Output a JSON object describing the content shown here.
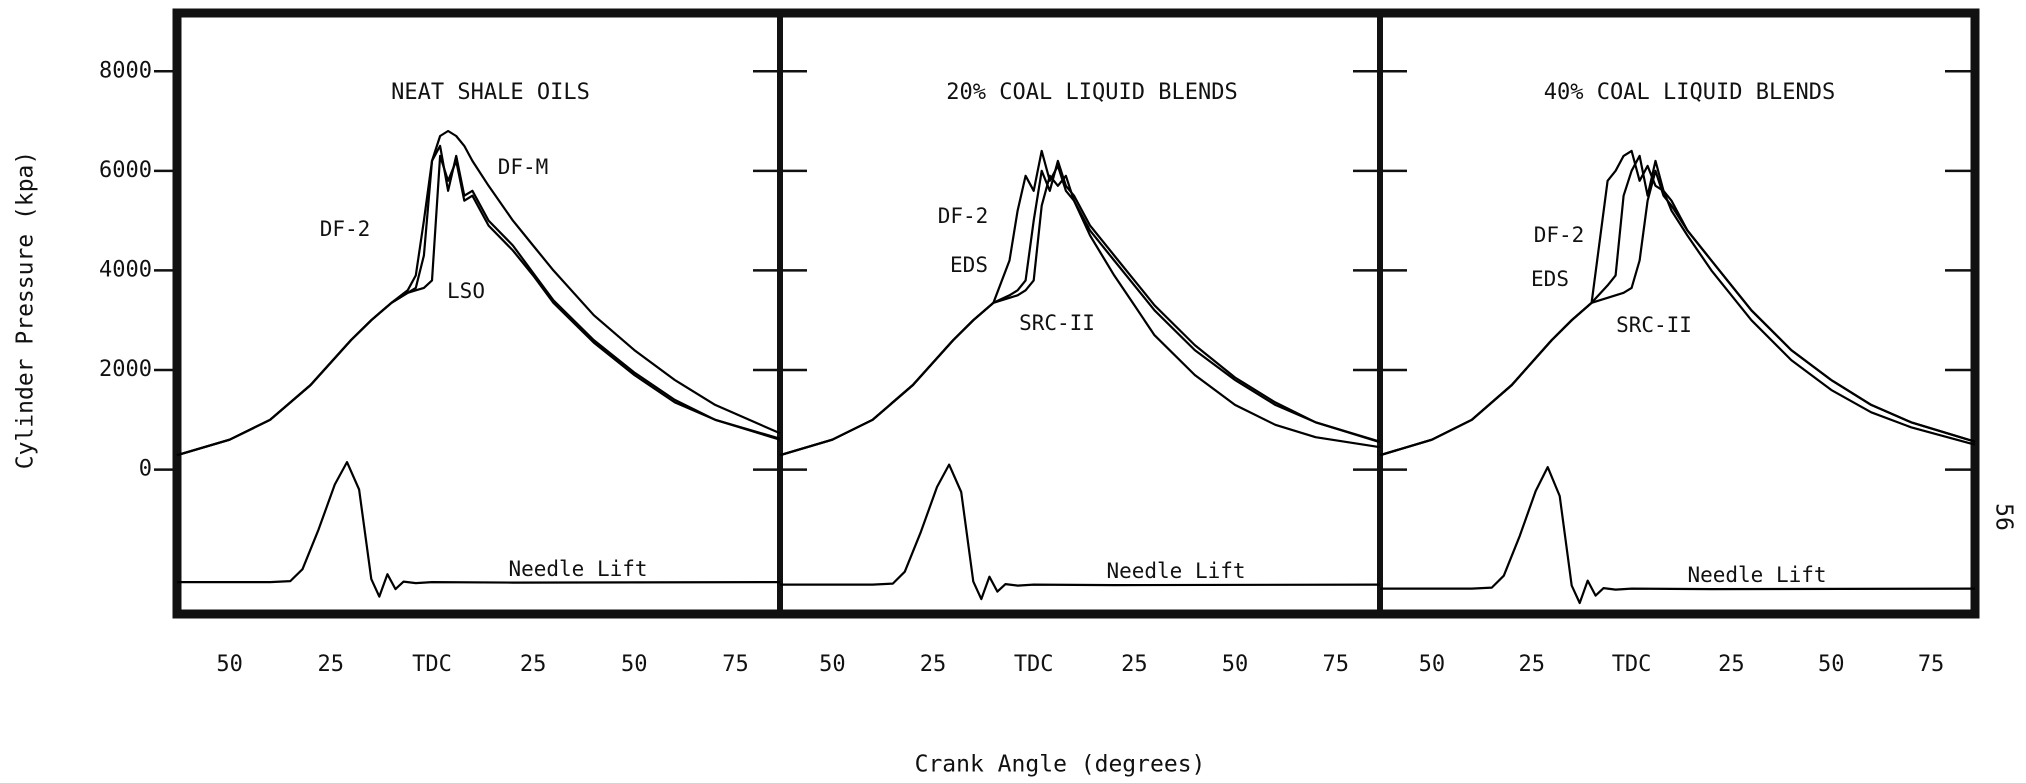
{
  "chart_data": [
    {
      "type": "line",
      "title": "NEAT SHALE OILS",
      "x": [
        -63,
        -50,
        -40,
        -30,
        -20,
        -15,
        -10,
        -6,
        -4,
        -2,
        0,
        2,
        4,
        6,
        8,
        10,
        14,
        20,
        25,
        30,
        40,
        50,
        60,
        70,
        86
      ],
      "xlim": [
        -63,
        86
      ],
      "xticks": [
        {
          "value": -50,
          "label": "50"
        },
        {
          "value": -25,
          "label": "25"
        },
        {
          "value": 0,
          "label": "TDC"
        },
        25,
        50,
        75
      ],
      "ylim": [
        -2900,
        9170
      ],
      "yticks": [
        0,
        2000,
        4000,
        6000,
        8000
      ],
      "series": [
        {
          "name": "DF-2",
          "color": "#000000",
          "values": [
            290,
            600,
            1000,
            1700,
            2600,
            3000,
            3350,
            3550,
            3650,
            4300,
            6200,
            6500,
            5600,
            6300,
            5500,
            5600,
            5000,
            4500,
            3950,
            3400,
            2600,
            1950,
            1400,
            1000,
            600
          ]
        },
        {
          "name": "LSO",
          "color": "#000000",
          "values": [
            290,
            600,
            1000,
            1700,
            2600,
            3000,
            3350,
            3550,
            3600,
            3650,
            3800,
            6300,
            5800,
            6200,
            5400,
            5500,
            4900,
            4400,
            3900,
            3350,
            2550,
            1900,
            1350,
            1000,
            620
          ]
        },
        {
          "name": "DF-M",
          "color": "#000000",
          "values": [
            290,
            600,
            1000,
            1700,
            2600,
            3000,
            3350,
            3600,
            3900,
            5000,
            6200,
            6700,
            6800,
            6700,
            6500,
            6200,
            5700,
            5000,
            4500,
            4000,
            3100,
            2400,
            1800,
            1300,
            730
          ]
        },
        {
          "name": "Needle Lift",
          "color": "#000000",
          "x": [
            -63,
            -40,
            -35,
            -32,
            -28,
            -24,
            -21,
            -18,
            -15,
            -13,
            -11,
            -9,
            -7,
            -4,
            0,
            20,
            86
          ],
          "values": [
            -2260,
            -2260,
            -2240,
            -2000,
            -1200,
            -300,
            150,
            -400,
            -2200,
            -2550,
            -2100,
            -2400,
            -2250,
            -2280,
            -2260,
            -2270,
            -2260
          ]
        }
      ]
    },
    {
      "type": "line",
      "title": "20% COAL LIQUID BLENDS",
      "x": [
        -63,
        -50,
        -40,
        -30,
        -20,
        -15,
        -10,
        -6,
        -4,
        -2,
        0,
        2,
        4,
        6,
        8,
        10,
        14,
        20,
        25,
        30,
        40,
        50,
        60,
        70,
        86
      ],
      "xlim": [
        -63,
        86
      ],
      "xticks": [
        {
          "value": -50,
          "label": "50"
        },
        {
          "value": -25,
          "label": "25"
        },
        {
          "value": 0,
          "label": "TDC"
        },
        25,
        50,
        75
      ],
      "series": [
        {
          "name": "DF-2",
          "color": "#000000",
          "values": [
            290,
            600,
            1000,
            1700,
            2600,
            3000,
            3350,
            4200,
            5200,
            5900,
            5600,
            6400,
            5800,
            6100,
            5600,
            5400,
            4800,
            4200,
            3700,
            3200,
            2400,
            1800,
            1300,
            950,
            550
          ]
        },
        {
          "name": "EDS",
          "color": "#000000",
          "values": [
            290,
            600,
            1000,
            1700,
            2600,
            3000,
            3350,
            3500,
            3600,
            3800,
            5000,
            6000,
            5600,
            6200,
            5700,
            5500,
            4900,
            4300,
            3800,
            3300,
            2500,
            1850,
            1350,
            950,
            560
          ]
        },
        {
          "name": "SRC-II",
          "color": "#000000",
          "values": [
            290,
            600,
            1000,
            1700,
            2600,
            3000,
            3350,
            3450,
            3500,
            3600,
            3800,
            5300,
            5900,
            5700,
            5900,
            5400,
            4700,
            3900,
            3300,
            2700,
            1900,
            1300,
            900,
            650,
            450
          ]
        },
        {
          "name": "Needle Lift",
          "color": "#000000",
          "x": [
            -63,
            -40,
            -35,
            -32,
            -28,
            -24,
            -21,
            -18,
            -15,
            -13,
            -11,
            -9,
            -7,
            -4,
            0,
            20,
            86
          ],
          "values": [
            -2310,
            -2310,
            -2290,
            -2050,
            -1250,
            -350,
            100,
            -450,
            -2250,
            -2600,
            -2150,
            -2450,
            -2300,
            -2330,
            -2310,
            -2320,
            -2310
          ]
        }
      ]
    },
    {
      "type": "line",
      "title": "40% COAL LIQUID BLENDS",
      "x": [
        -63,
        -50,
        -40,
        -30,
        -20,
        -15,
        -10,
        -6,
        -4,
        -2,
        0,
        2,
        4,
        6,
        8,
        10,
        14,
        20,
        25,
        30,
        40,
        50,
        60,
        70,
        86
      ],
      "xlim": [
        -63,
        86
      ],
      "xticks": [
        {
          "value": -50,
          "label": "50"
        },
        {
          "value": -25,
          "label": "25"
        },
        {
          "value": 0,
          "label": "TDC"
        },
        25,
        50,
        75
      ],
      "series": [
        {
          "name": "DF-2",
          "color": "#000000",
          "values": [
            290,
            600,
            1000,
            1700,
            2600,
            3000,
            3350,
            5800,
            6000,
            6300,
            6400,
            5800,
            6100,
            5700,
            5600,
            5200,
            4700,
            4000,
            3500,
            3000,
            2200,
            1600,
            1150,
            850,
            500
          ]
        },
        {
          "name": "EDS",
          "color": "#000000",
          "values": [
            290,
            600,
            1000,
            1700,
            2600,
            3000,
            3350,
            3700,
            3900,
            5500,
            6000,
            6300,
            5500,
            6200,
            5600,
            5400,
            4800,
            4200,
            3700,
            3200,
            2400,
            1800,
            1300,
            950,
            560
          ]
        },
        {
          "name": "SRC-II",
          "color": "#000000",
          "values": [
            290,
            600,
            1000,
            1700,
            2600,
            3000,
            3350,
            3450,
            3500,
            3550,
            3650,
            4200,
            5400,
            6000,
            5500,
            5300,
            4800,
            4200,
            3700,
            3200,
            2400,
            1800,
            1300,
            950,
            560
          ]
        },
        {
          "name": "Needle Lift",
          "color": "#000000",
          "x": [
            -63,
            -40,
            -35,
            -32,
            -28,
            -24,
            -21,
            -18,
            -15,
            -13,
            -11,
            -9,
            -7,
            -4,
            0,
            20,
            86
          ],
          "values": [
            -2390,
            -2390,
            -2370,
            -2130,
            -1330,
            -430,
            50,
            -530,
            -2330,
            -2680,
            -2230,
            -2530,
            -2380,
            -2410,
            -2390,
            -2400,
            -2390
          ]
        }
      ]
    }
  ],
  "xlabel": "Crank Angle (degrees)",
  "ylabel": "Cylinder Pressure (kpa)",
  "page_number": "56"
}
